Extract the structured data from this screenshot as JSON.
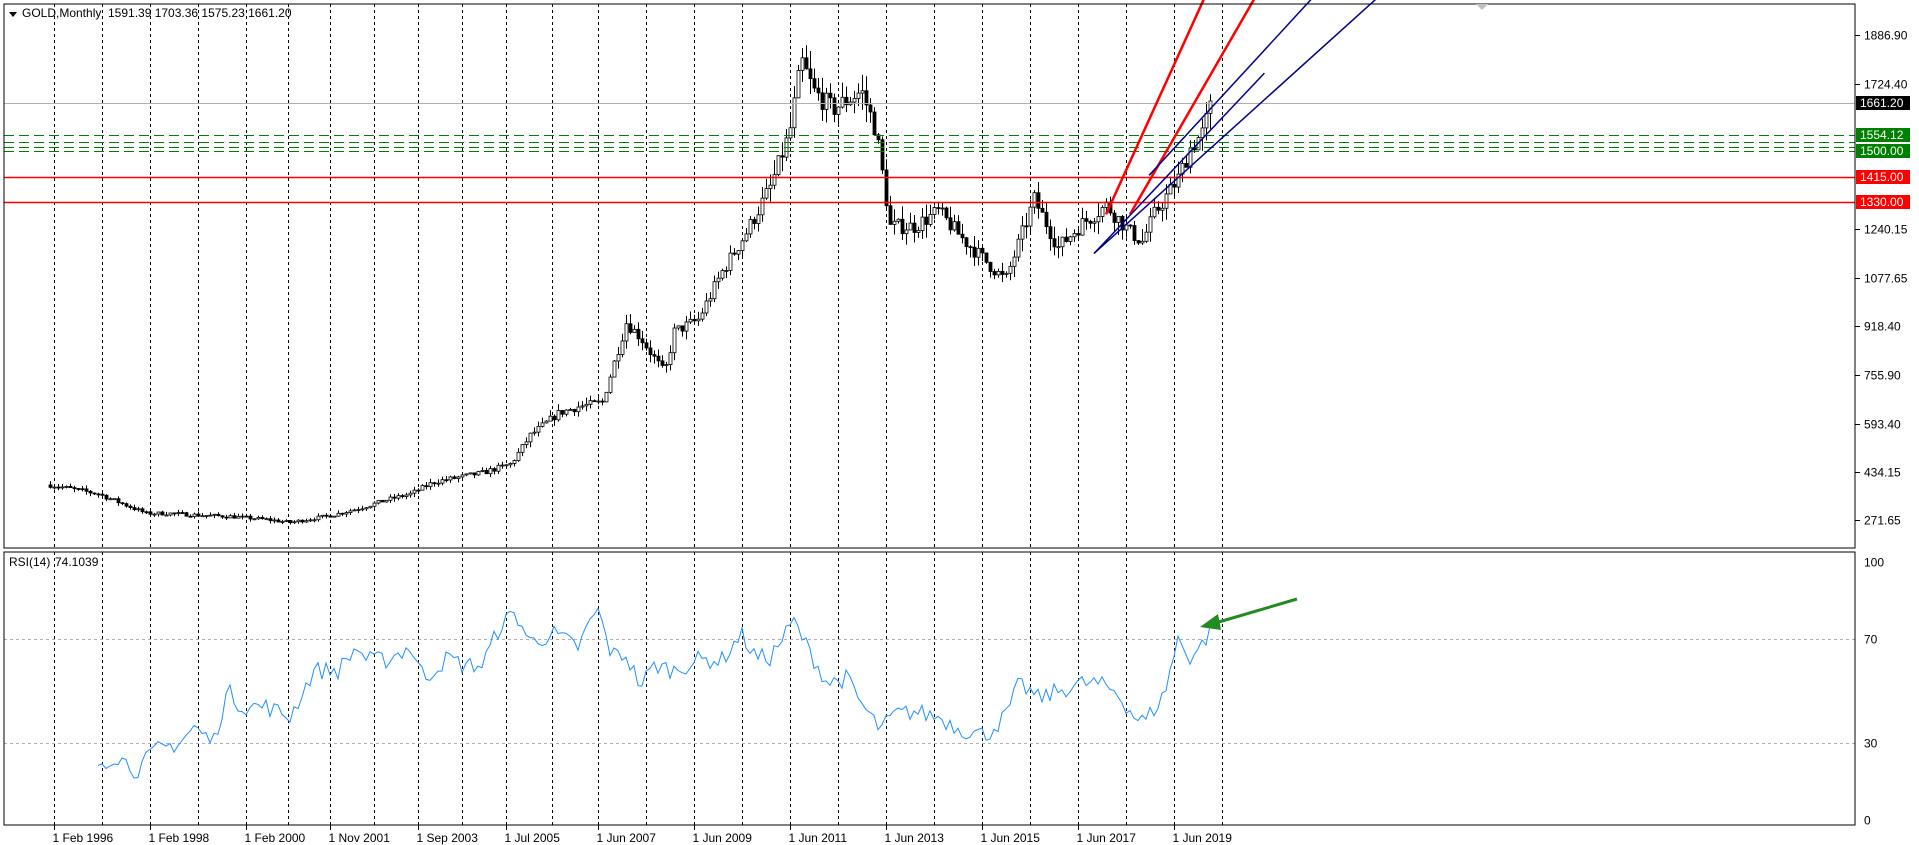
{
  "colors": {
    "background": "#ffffff",
    "frame": "#000000",
    "grid": "#000000",
    "candle": "#000000",
    "rsi_line": "#1e90ff",
    "support_green": "#008000",
    "resistance_red": "#ff0000",
    "trend_red": "#ff0000",
    "trend_blue": "#00008b",
    "arrow": "#228b22",
    "price_tag": "#000000"
  },
  "chart_data": [
    {
      "type": "candlestick",
      "title": "GOLD,Monthly",
      "symbol": "GOLD",
      "timeframe": "Monthly",
      "header": {
        "label": "GOLD,Monthly",
        "ohlc": "1591.39 1703.36 1575.23 1661.20"
      },
      "last_bar": {
        "open": 1591.39,
        "high": 1703.36,
        "low": 1575.23,
        "close": 1661.2
      },
      "y_tick_labels": [
        "1886.90",
        "1724.40",
        "1661.20",
        "1554.12",
        "1500.00",
        "1415.00",
        "1330.00",
        "1240.15",
        "1077.65",
        "918.40",
        "755.90",
        "593.40",
        "434.15",
        "271.65"
      ],
      "y_ticks": [
        1886.9,
        1724.4,
        1240.15,
        1077.65,
        918.4,
        755.9,
        593.4,
        434.15,
        271.65
      ],
      "ylim": [
        180,
        1990
      ],
      "x_tick_labels": [
        "1 Feb 1996",
        "1 Feb 1998",
        "1 Feb 2000",
        "1 Nov 2001",
        "1 Sep 2003",
        "1 Jul 2005",
        "1 Jun 2007",
        "1 Jun 2009",
        "1 Jun 2011",
        "1 Jun 2013",
        "1 Jun 2015",
        "1 Jun 2017",
        "1 Jun 2019"
      ],
      "grid": "vertical dotted",
      "price_tags": [
        {
          "value": 1661.2,
          "label": "1661.20",
          "color": "#000000"
        },
        {
          "value": 1554.12,
          "label": "1554.12",
          "color": "#008000"
        },
        {
          "value": 1500.0,
          "label": "1500.00",
          "color": "#008000"
        },
        {
          "value": 1415.0,
          "label": "1415.00",
          "color": "#ff0000"
        },
        {
          "value": 1330.0,
          "label": "1330.00",
          "color": "#ff0000"
        }
      ],
      "horizontal_levels": [
        {
          "value": 1554.12,
          "style": "dashed",
          "color": "#008000"
        },
        {
          "value": 1530.0,
          "style": "dashed",
          "color": "#008000"
        },
        {
          "value": 1515.0,
          "style": "dashed",
          "color": "#008000"
        },
        {
          "value": 1500.0,
          "style": "dashed",
          "color": "#008000"
        },
        {
          "value": 1415.0,
          "style": "solid",
          "color": "#ff0000"
        },
        {
          "value": 1330.0,
          "style": "solid",
          "color": "#ff0000"
        },
        {
          "value": 1661.2,
          "style": "thin",
          "color": "#b0b0b0"
        }
      ],
      "trend_lines": [
        {
          "color": "#ff0000",
          "from": {
            "t": 2018.0,
            "v": 1290
          },
          "to": {
            "t": 2020.05,
            "v": 2010
          }
        },
        {
          "color": "#ff0000",
          "from": {
            "t": 2018.5,
            "v": 1290
          },
          "to": {
            "t": 2021.1,
            "v": 2010
          }
        },
        {
          "color": "#00008b",
          "from": {
            "t": 2017.75,
            "v": 1160
          },
          "to": {
            "t": 2021.3,
            "v": 1760
          }
        },
        {
          "color": "#00008b",
          "from": {
            "t": 2018.9,
            "v": 1420
          },
          "to": {
            "t": 2022.3,
            "v": 2010
          }
        },
        {
          "color": "#00008b",
          "from": {
            "t": 2017.75,
            "v": 1160
          },
          "to": {
            "t": 2023.65,
            "v": 2010
          }
        }
      ],
      "price_anchors": [
        [
          1996.0,
          390
        ],
        [
          1997.0,
          360
        ],
        [
          1998.0,
          295
        ],
        [
          1998.5,
          295
        ],
        [
          1999.0,
          290
        ],
        [
          1999.75,
          285
        ],
        [
          2000.5,
          275
        ],
        [
          2001.0,
          265
        ],
        [
          2001.9,
          290
        ],
        [
          2002.5,
          315
        ],
        [
          2003.0,
          340
        ],
        [
          2003.5,
          360
        ],
        [
          2004.0,
          400
        ],
        [
          2005.0,
          430
        ],
        [
          2005.6,
          460
        ],
        [
          2006.0,
          555
        ],
        [
          2006.6,
          630
        ],
        [
          2007.0,
          650
        ],
        [
          2007.5,
          665
        ],
        [
          2008.0,
          930
        ],
        [
          2008.3,
          880
        ],
        [
          2008.8,
          760
        ],
        [
          2009.0,
          900
        ],
        [
          2009.5,
          940
        ],
        [
          2010.0,
          1100
        ],
        [
          2010.5,
          1230
        ],
        [
          2011.0,
          1380
        ],
        [
          2011.4,
          1560
        ],
        [
          2011.65,
          1800
        ],
        [
          2011.9,
          1700
        ],
        [
          2012.3,
          1640
        ],
        [
          2012.9,
          1700
        ],
        [
          2013.2,
          1570
        ],
        [
          2013.5,
          1250
        ],
        [
          2014.0,
          1250
        ],
        [
          2014.5,
          1300
        ],
        [
          2015.0,
          1210
        ],
        [
          2015.9,
          1070
        ],
        [
          2016.5,
          1340
        ],
        [
          2017.0,
          1180
        ],
        [
          2017.5,
          1260
        ],
        [
          2018.0,
          1320
        ],
        [
          2018.5,
          1230
        ],
        [
          2018.75,
          1200
        ],
        [
          2019.0,
          1290
        ],
        [
          2019.5,
          1410
        ],
        [
          2019.75,
          1510
        ],
        [
          2020.0,
          1560
        ],
        [
          2020.2,
          1661.2
        ]
      ]
    },
    {
      "type": "line",
      "title": "RSI(14)",
      "indicator": "RSI(14)",
      "value_label": "74.1039",
      "current_value": 74.1039,
      "ylim": [
        0,
        100
      ],
      "y_tick_labels": [
        "100",
        "70",
        "30",
        "0"
      ],
      "y_ticks": [
        100,
        70,
        30,
        0
      ],
      "reference_levels": [
        70,
        30
      ],
      "rsi_anchors": [
        [
          1997.0,
          22
        ],
        [
          1997.4,
          25
        ],
        [
          1997.8,
          19
        ],
        [
          1998.2,
          27
        ],
        [
          1998.7,
          30
        ],
        [
          1999.0,
          36
        ],
        [
          1999.4,
          30
        ],
        [
          1999.7,
          50
        ],
        [
          2000.0,
          44
        ],
        [
          2000.5,
          44
        ],
        [
          2001.0,
          40
        ],
        [
          2001.5,
          58
        ],
        [
          2002.0,
          58
        ],
        [
          2002.4,
          67
        ],
        [
          2002.6,
          62
        ],
        [
          2003.0,
          62
        ],
        [
          2003.5,
          67
        ],
        [
          2003.8,
          55
        ],
        [
          2004.3,
          63
        ],
        [
          2004.6,
          60
        ],
        [
          2005.0,
          60
        ],
        [
          2005.4,
          76
        ],
        [
          2005.7,
          80
        ],
        [
          2006.0,
          69
        ],
        [
          2006.5,
          72
        ],
        [
          2007.0,
          67
        ],
        [
          2007.4,
          82
        ],
        [
          2007.7,
          64
        ],
        [
          2008.0,
          64
        ],
        [
          2008.3,
          52
        ],
        [
          2008.6,
          60
        ],
        [
          2009.0,
          58
        ],
        [
          2009.5,
          62
        ],
        [
          2010.0,
          62
        ],
        [
          2010.4,
          72
        ],
        [
          2010.7,
          63
        ],
        [
          2011.0,
          63
        ],
        [
          2011.5,
          77
        ],
        [
          2011.8,
          66
        ],
        [
          2012.2,
          53
        ],
        [
          2012.6,
          55
        ],
        [
          2012.9,
          45
        ],
        [
          2013.3,
          35
        ],
        [
          2013.6,
          41
        ],
        [
          2014.0,
          42
        ],
        [
          2014.5,
          40
        ],
        [
          2015.0,
          35
        ],
        [
          2015.5,
          33
        ],
        [
          2015.9,
          40
        ],
        [
          2016.2,
          53
        ],
        [
          2016.6,
          47
        ],
        [
          2017.0,
          50
        ],
        [
          2017.5,
          53
        ],
        [
          2017.8,
          53
        ],
        [
          2018.2,
          50
        ],
        [
          2018.6,
          40
        ],
        [
          2018.8,
          38
        ],
        [
          2019.2,
          48
        ],
        [
          2019.5,
          70
        ],
        [
          2019.75,
          63
        ],
        [
          2020.0,
          68
        ],
        [
          2020.2,
          74.1
        ]
      ],
      "annotation": {
        "shape": "arrow",
        "color": "#228b22",
        "points_to": {
          "t": 2020.2,
          "v": 74
        }
      }
    }
  ]
}
